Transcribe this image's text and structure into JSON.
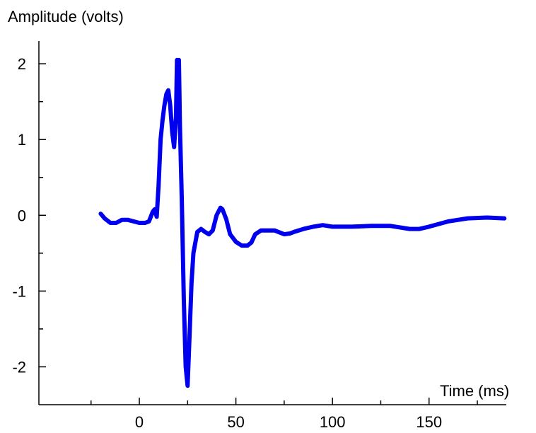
{
  "chart_data": {
    "type": "line",
    "ylabel": "Amplitude (volts)",
    "xlabel": "Time (ms)",
    "xlim": [
      -52,
      190
    ],
    "ylim": [
      -2.5,
      2.3
    ],
    "x_ticks": [
      0,
      50,
      100,
      150
    ],
    "x_tick_labels": [
      "0",
      "50",
      "100",
      "150"
    ],
    "y_ticks": [
      2,
      1,
      0,
      -1,
      -2
    ],
    "y_tick_labels": [
      "2",
      "1",
      "0",
      "-1",
      "-2"
    ],
    "y_minor_ticks": [
      1.5,
      0.5,
      -0.5,
      -1.5
    ],
    "x_minor_ticks": [
      -25,
      25,
      75,
      125,
      175
    ],
    "grid": false,
    "series": [
      {
        "color": "#0000ee",
        "x": [
          -20,
          -18,
          -15,
          -12,
          -9,
          -6,
          -3,
          0,
          3,
          5,
          7,
          8,
          9,
          10,
          11,
          12,
          13,
          14,
          15,
          16,
          17,
          18,
          19,
          19.5,
          20,
          20.5,
          21,
          22,
          23,
          24,
          25,
          26,
          27,
          28,
          30,
          32,
          34,
          36,
          38,
          40,
          42,
          43,
          45,
          47,
          50,
          53,
          56,
          58,
          60,
          63,
          66,
          70,
          75,
          78,
          80,
          85,
          90,
          95,
          100,
          110,
          120,
          130,
          140,
          145,
          150,
          160,
          170,
          180,
          189
        ],
        "y": [
          0.02,
          -0.04,
          -0.1,
          -0.1,
          -0.06,
          -0.06,
          -0.08,
          -0.1,
          -0.1,
          -0.08,
          0.05,
          0.08,
          -0.02,
          0.4,
          1.0,
          1.25,
          1.45,
          1.6,
          1.65,
          1.45,
          1.1,
          0.9,
          1.3,
          2.05,
          1.85,
          2.05,
          1.2,
          0.2,
          -1.1,
          -2.0,
          -2.25,
          -1.6,
          -0.9,
          -0.5,
          -0.22,
          -0.18,
          -0.22,
          -0.25,
          -0.2,
          0.0,
          0.1,
          0.08,
          -0.05,
          -0.25,
          -0.35,
          -0.4,
          -0.4,
          -0.36,
          -0.25,
          -0.2,
          -0.2,
          -0.2,
          -0.25,
          -0.24,
          -0.22,
          -0.18,
          -0.15,
          -0.13,
          -0.15,
          -0.15,
          -0.14,
          -0.14,
          -0.18,
          -0.18,
          -0.15,
          -0.08,
          -0.04,
          -0.03,
          -0.04
        ]
      }
    ]
  }
}
